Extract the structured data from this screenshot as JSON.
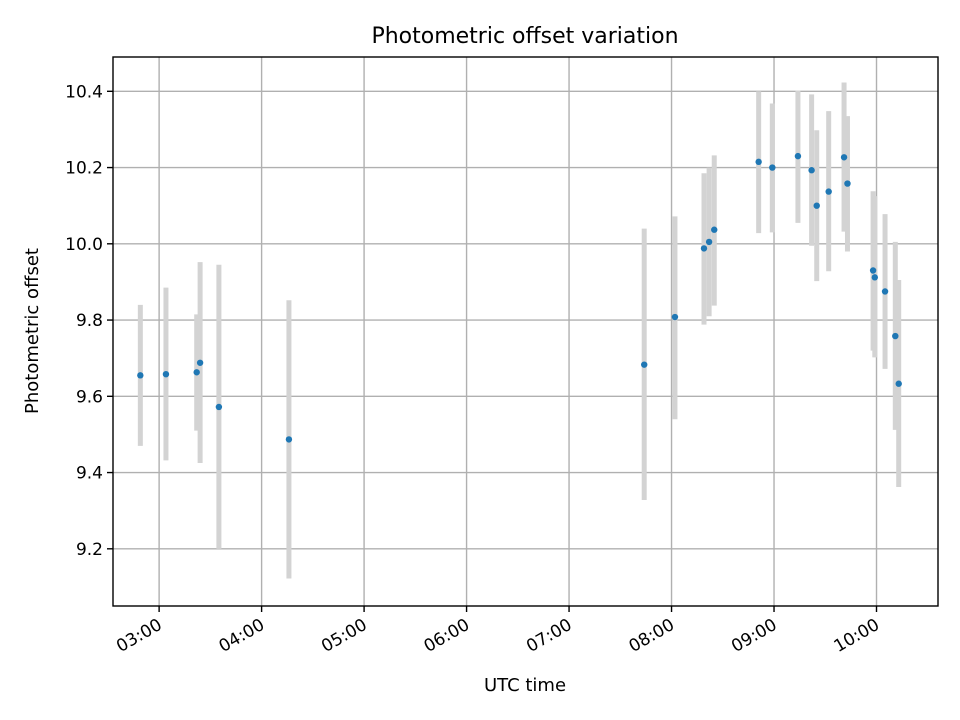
{
  "chart_data": {
    "type": "scatter",
    "title": "Photometric offset variation",
    "xlabel": "UTC time",
    "ylabel": "Photometric offset",
    "x_axis": {
      "kind": "time",
      "range": [
        "02:33",
        "10:36"
      ],
      "ticks": [
        "03:00",
        "04:00",
        "05:00",
        "06:00",
        "07:00",
        "08:00",
        "09:00",
        "10:00"
      ],
      "tick_label_rotation_deg": 30
    },
    "y_axis": {
      "range": [
        9.05,
        10.49
      ],
      "ticks": [
        "9.2",
        "9.4",
        "9.6",
        "9.8",
        "10.0",
        "10.2",
        "10.4"
      ]
    },
    "grid": true,
    "marker_color": "#1f77b4",
    "errorbar_color": "#d3d3d3",
    "points": [
      {
        "x": "02:49",
        "y": 9.655,
        "err_low": 9.47,
        "err_high": 9.84
      },
      {
        "x": "03:04",
        "y": 9.658,
        "err_low": 9.432,
        "err_high": 9.885
      },
      {
        "x": "03:22",
        "y": 9.663,
        "err_low": 9.51,
        "err_high": 9.815
      },
      {
        "x": "03:24",
        "y": 9.688,
        "err_low": 9.425,
        "err_high": 9.952
      },
      {
        "x": "03:35",
        "y": 9.572,
        "err_low": 9.2,
        "err_high": 9.945
      },
      {
        "x": "04:16",
        "y": 9.487,
        "err_low": 9.122,
        "err_high": 9.852
      },
      {
        "x": "07:44",
        "y": 9.683,
        "err_low": 9.328,
        "err_high": 10.04
      },
      {
        "x": "08:02",
        "y": 9.808,
        "err_low": 9.54,
        "err_high": 10.072
      },
      {
        "x": "08:19",
        "y": 9.988,
        "err_low": 9.788,
        "err_high": 10.185
      },
      {
        "x": "08:22",
        "y": 10.005,
        "err_low": 9.81,
        "err_high": 10.2
      },
      {
        "x": "08:25",
        "y": 10.037,
        "err_low": 9.838,
        "err_high": 10.232
      },
      {
        "x": "08:51",
        "y": 10.215,
        "err_low": 10.028,
        "err_high": 10.4
      },
      {
        "x": "08:59",
        "y": 10.2,
        "err_low": 10.03,
        "err_high": 10.368
      },
      {
        "x": "09:14",
        "y": 10.23,
        "err_low": 10.055,
        "err_high": 10.402
      },
      {
        "x": "09:22",
        "y": 10.193,
        "err_low": 9.995,
        "err_high": 10.392
      },
      {
        "x": "09:25",
        "y": 10.1,
        "err_low": 9.902,
        "err_high": 10.298
      },
      {
        "x": "09:32",
        "y": 10.137,
        "err_low": 9.928,
        "err_high": 10.348
      },
      {
        "x": "09:41",
        "y": 10.227,
        "err_low": 10.032,
        "err_high": 10.423
      },
      {
        "x": "09:43",
        "y": 10.158,
        "err_low": 9.98,
        "err_high": 10.335
      },
      {
        "x": "09:58",
        "y": 9.93,
        "err_low": 9.72,
        "err_high": 10.138
      },
      {
        "x": "09:59",
        "y": 9.912,
        "err_low": 9.702,
        "err_high": 10.125
      },
      {
        "x": "10:05",
        "y": 9.875,
        "err_low": 9.672,
        "err_high": 10.078
      },
      {
        "x": "10:11",
        "y": 9.758,
        "err_low": 9.512,
        "err_high": 10.005
      },
      {
        "x": "10:13",
        "y": 9.633,
        "err_low": 9.362,
        "err_high": 9.905
      }
    ]
  }
}
